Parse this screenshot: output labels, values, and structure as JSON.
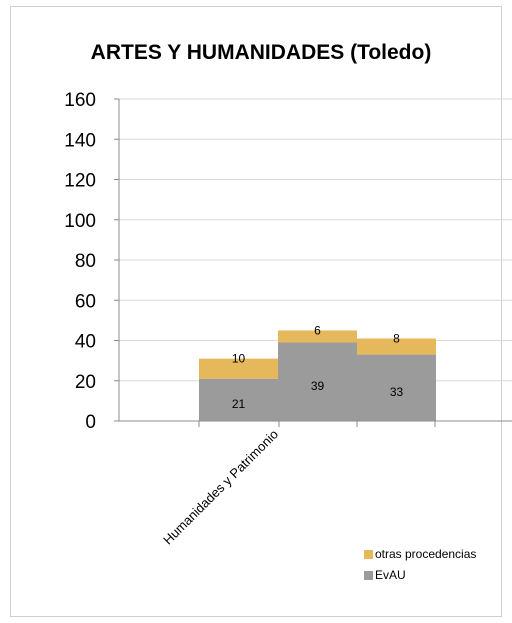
{
  "chart_data": {
    "type": "bar",
    "title": "ARTES Y HUMANIDADES (Toledo)",
    "categories": [
      "Humanidades y Patrimonio"
    ],
    "series": [
      {
        "name": "EvAU",
        "values": [
          [
            21,
            39,
            33
          ]
        ],
        "color": "#9b9b9b"
      },
      {
        "name": "otras procedencias",
        "values": [
          [
            10,
            6,
            8
          ]
        ],
        "color": "#e6b85c"
      }
    ],
    "stacked": true,
    "ylim": [
      0,
      160
    ],
    "yticks": [
      0,
      20,
      40,
      60,
      80,
      100,
      120,
      140,
      160
    ],
    "grid": true,
    "legend_position": "bottom-right"
  }
}
